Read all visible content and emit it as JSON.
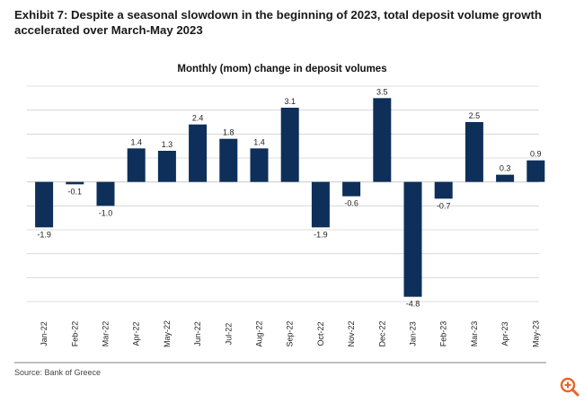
{
  "exhibit": {
    "title": "Exhibit 7: Despite a seasonal slowdown in the beginning of 2023, total deposit volume growth accelerated over March-May 2023"
  },
  "source": "Source: Bank of Greece",
  "icons": {
    "zoom": "zoom-in-icon"
  },
  "colors": {
    "bar": "#0e2f5a",
    "grid": "#d0d0d0",
    "accent_icon": "#e8632a"
  },
  "chart_data": {
    "type": "bar",
    "title": "Monthly (mom) change in deposit volumes",
    "categories": [
      "Jan-22",
      "Feb-22",
      "Mar-22",
      "Apr-22",
      "May-22",
      "Jun-22",
      "Jul-22",
      "Aug-22",
      "Sep-22",
      "Oct-22",
      "Nov-22",
      "Dec-22",
      "Jan-23",
      "Feb-23",
      "Mar-23",
      "Apr-23",
      "May-23"
    ],
    "values": [
      -1.9,
      -0.1,
      -1.0,
      1.4,
      1.3,
      2.4,
      1.8,
      1.4,
      3.1,
      -1.9,
      -0.6,
      3.5,
      -4.8,
      -0.7,
      2.5,
      0.3,
      0.9
    ],
    "labels": [
      "-1.9",
      "-0.1",
      "-1.0",
      "1.4",
      "1.3",
      "2.4",
      "1.8",
      "1.4",
      "3.1",
      "-1.9",
      "-0.6",
      "3.5",
      "-4.8",
      "-0.7",
      "2.5",
      "0.3",
      "0.9"
    ],
    "ylim": [
      -5,
      4
    ],
    "ytick_step": 1,
    "grid": true,
    "xlabel": "",
    "ylabel": ""
  }
}
